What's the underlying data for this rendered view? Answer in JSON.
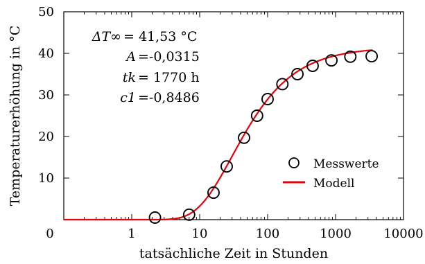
{
  "chart_data": {
    "type": "scatter",
    "xlabel": "tatsächliche Zeit in Stunden",
    "ylabel": "Temperaturerhöhung in °C",
    "x_scale": "log",
    "xlim": [
      0.1,
      10000
    ],
    "ylim": [
      0,
      50
    ],
    "x_ticks": [
      {
        "value": 0.1,
        "label": "0"
      },
      {
        "value": 1,
        "label": "1"
      },
      {
        "value": 10,
        "label": "10"
      },
      {
        "value": 100,
        "label": "100"
      },
      {
        "value": 1000,
        "label": "1000"
      },
      {
        "value": 10000,
        "label": "10000"
      }
    ],
    "y_ticks": [
      {
        "value": 10,
        "label": "10"
      },
      {
        "value": 20,
        "label": "20"
      },
      {
        "value": 30,
        "label": "30"
      },
      {
        "value": 40,
        "label": "40"
      },
      {
        "value": 50,
        "label": "50"
      }
    ],
    "grid": false,
    "legend_position": "right",
    "annotation": {
      "lines": [
        {
          "lhs": "ΔT∞",
          "rhs": "= 41,53 °C"
        },
        {
          "lhs": "A",
          "rhs": "=-0,0315"
        },
        {
          "lhs": "tk",
          "rhs": "= 1770 h"
        },
        {
          "lhs": "c1",
          "rhs": "=-0,8486"
        }
      ]
    },
    "series": [
      {
        "name": "Messwerte",
        "kind": "marker",
        "marker": "open-circle",
        "color": "#000000",
        "x": [
          2.2,
          7,
          16,
          25,
          45,
          70,
          100,
          165,
          275,
          460,
          870,
          1650,
          3400
        ],
        "y": [
          0.5,
          1.2,
          6.5,
          12.8,
          19.7,
          25.0,
          29.0,
          32.6,
          35.0,
          37.0,
          38.3,
          39.2,
          39.3
        ]
      },
      {
        "name": "Modell",
        "kind": "line",
        "color": "#e8000b",
        "model": {
          "dT_inf": 41.53,
          "A": -0.0315,
          "tk": 1770,
          "c1": -0.8486
        }
      }
    ]
  }
}
